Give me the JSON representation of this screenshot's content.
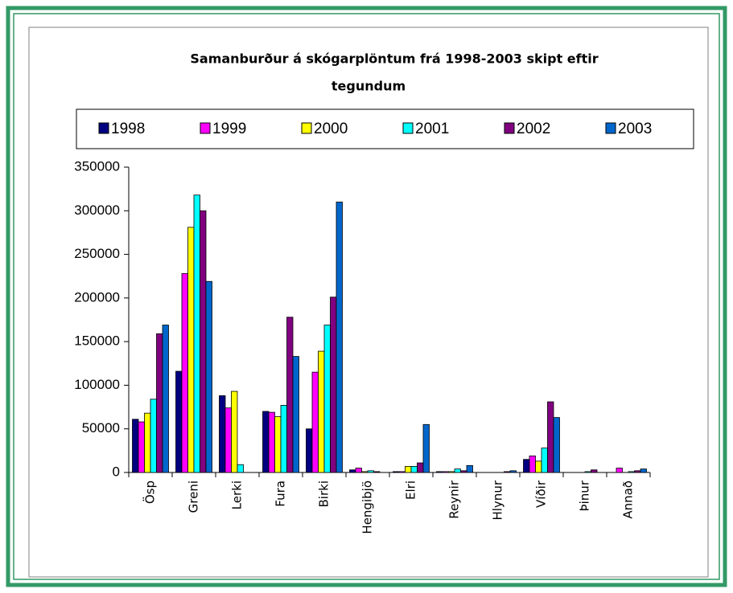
{
  "chart_data": {
    "type": "bar",
    "title": "Samanburður á skógarplöntum frá 1998-2003 skipt eftir",
    "title_line2": "tegundum",
    "categories": [
      "Ösp",
      "Greni",
      "Lerki",
      "Fura",
      "Birki",
      "Hengibjö",
      "Elri",
      "Reynir",
      "Hlynur",
      "Víðir",
      "Þinur",
      "Annað"
    ],
    "series": [
      {
        "name": "1998",
        "color": "#000080",
        "values": [
          61000,
          116000,
          88000,
          70000,
          50000,
          3000,
          1000,
          1000,
          0,
          15000,
          0,
          0
        ]
      },
      {
        "name": "1999",
        "color": "#ff00ff",
        "values": [
          58000,
          228000,
          74000,
          69000,
          115000,
          5000,
          1000,
          1000,
          0,
          19000,
          0,
          5000
        ]
      },
      {
        "name": "2000",
        "color": "#ffff00",
        "values": [
          68000,
          281000,
          93000,
          64000,
          139000,
          1000,
          7000,
          1000,
          0,
          13000,
          0,
          0
        ]
      },
      {
        "name": "2001",
        "color": "#00ffff",
        "values": [
          84000,
          318000,
          9000,
          77000,
          169000,
          2000,
          7000,
          4000,
          0,
          28000,
          1000,
          1000
        ]
      },
      {
        "name": "2002",
        "color": "#800080",
        "values": [
          159000,
          300000,
          0,
          178000,
          201000,
          1000,
          11000,
          2000,
          1000,
          81000,
          3000,
          2000
        ]
      },
      {
        "name": "2003",
        "color": "#0066cc",
        "values": [
          169000,
          219000,
          0,
          133000,
          310000,
          0,
          55000,
          8000,
          2000,
          63000,
          0,
          4000
        ]
      }
    ],
    "ylim": [
      0,
      350000
    ],
    "yticks": [
      0,
      50000,
      100000,
      150000,
      200000,
      250000,
      300000,
      350000
    ],
    "legend": "top"
  }
}
